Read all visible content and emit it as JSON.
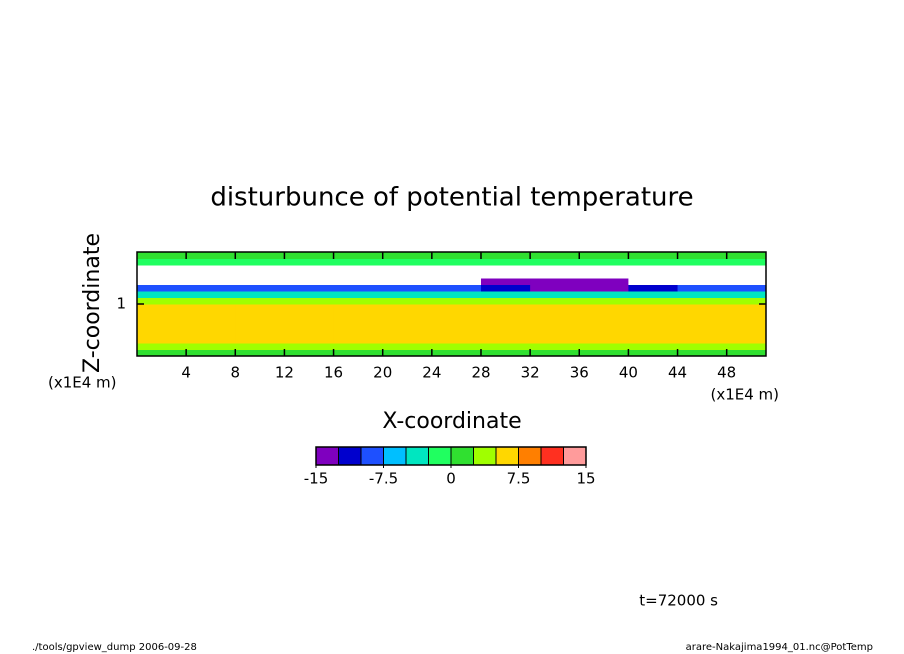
{
  "chart_data": {
    "type": "contourf",
    "title": "disturbunce of potential temperature",
    "xlabel": "X-coordinate",
    "ylabel": "Z-coordinate",
    "xunit": "(x1E4 m)",
    "yunit": "(x1E4 m)",
    "xlim": [
      0,
      51.2
    ],
    "ylim": [
      0,
      2
    ],
    "xticks": [
      4,
      8,
      12,
      16,
      20,
      24,
      28,
      32,
      36,
      40,
      44,
      48
    ],
    "yticks": [
      1
    ],
    "x": [
      2,
      6,
      10,
      14,
      18,
      22,
      26,
      30,
      34,
      38,
      42,
      46,
      50
    ],
    "y": [
      0.0625,
      0.1875,
      0.3125,
      0.4375,
      0.5625,
      0.6875,
      0.8125,
      0.9375,
      1.0625,
      1.1875,
      1.3125,
      1.4375,
      1.5625,
      1.6875,
      1.8125,
      1.9375
    ],
    "z": [
      [
        1,
        1,
        1,
        1,
        1,
        1,
        1,
        1,
        1,
        1,
        1,
        1,
        1
      ],
      [
        3,
        3.5,
        3,
        3,
        3.5,
        3,
        3,
        3,
        3,
        3.5,
        3,
        3,
        3
      ],
      [
        6,
        6,
        6,
        6,
        6,
        6,
        6,
        6,
        6,
        6,
        6,
        5.5,
        5.5
      ],
      [
        6.5,
        6.5,
        6.5,
        6.5,
        6.5,
        6.5,
        6.5,
        6.5,
        6.5,
        6.5,
        6,
        6,
        6
      ],
      [
        6.5,
        6.5,
        6.5,
        6.5,
        6.5,
        6.5,
        6.5,
        6.5,
        6.5,
        6.5,
        6.5,
        6.5,
        6.5
      ],
      [
        6.5,
        6.5,
        6.5,
        6.5,
        6.5,
        6.5,
        6.5,
        6.5,
        6.5,
        6.5,
        6.5,
        6.5,
        6.5
      ],
      [
        6.5,
        6.5,
        6.5,
        6.5,
        6.5,
        6.5,
        6.5,
        6.5,
        6.5,
        6.5,
        6.5,
        6.5,
        6.5
      ],
      [
        6,
        6,
        6,
        6,
        6,
        6,
        6,
        6,
        6,
        6,
        6,
        6,
        6
      ],
      [
        3.5,
        3.5,
        3.5,
        3.5,
        3.5,
        3.5,
        3.5,
        3.5,
        3.5,
        3.5,
        3.5,
        3.5,
        3.5
      ],
      [
        -3,
        -3,
        -3,
        -3,
        -3,
        -3,
        -3,
        -4,
        -4,
        -4,
        -3,
        -3,
        -3
      ],
      [
        -9,
        -9,
        -9,
        -9,
        -9,
        -9,
        -10,
        -12,
        -13,
        -13,
        -12,
        -10,
        -9
      ],
      [
        -16,
        -16,
        -16,
        -16,
        -16,
        -16,
        -16,
        -14,
        -14,
        -14,
        -16,
        -16,
        -16
      ],
      [
        -17,
        -17,
        -17,
        -17,
        -17,
        -17,
        -17,
        -17,
        -17,
        -17,
        -17,
        -17,
        -17
      ],
      [
        -16,
        -16,
        -16,
        -16,
        -16,
        -16,
        -16,
        -16,
        -16,
        -16,
        -16,
        -16,
        -16
      ],
      [
        -1,
        -1,
        -1,
        -1,
        -1,
        -1,
        -1,
        -1,
        -1,
        -1,
        -1,
        -1,
        -1
      ],
      [
        1,
        1,
        1,
        1,
        1,
        1,
        1,
        1,
        1,
        1,
        1,
        1,
        1
      ]
    ],
    "colorbar": {
      "levels": [
        -15,
        -12.5,
        -10,
        -7.5,
        -5,
        -2.5,
        0,
        2.5,
        5,
        7.5,
        10,
        12.5,
        15
      ],
      "colors": [
        "#7f00bf",
        "#0000cd",
        "#1e50ff",
        "#00bfff",
        "#00e6c0",
        "#20ff60",
        "#30e030",
        "#a0ff00",
        "#ffd700",
        "#ff7f00",
        "#ff3020",
        "#ff9b9b"
      ],
      "ticks": [
        -15,
        -7.5,
        0,
        7.5,
        15
      ]
    },
    "annotations": [
      "t=72000 s",
      "./tools/gpview_dump  2006-09-28",
      "arare-Nakajima1994_01.nc@PotTemp"
    ]
  }
}
